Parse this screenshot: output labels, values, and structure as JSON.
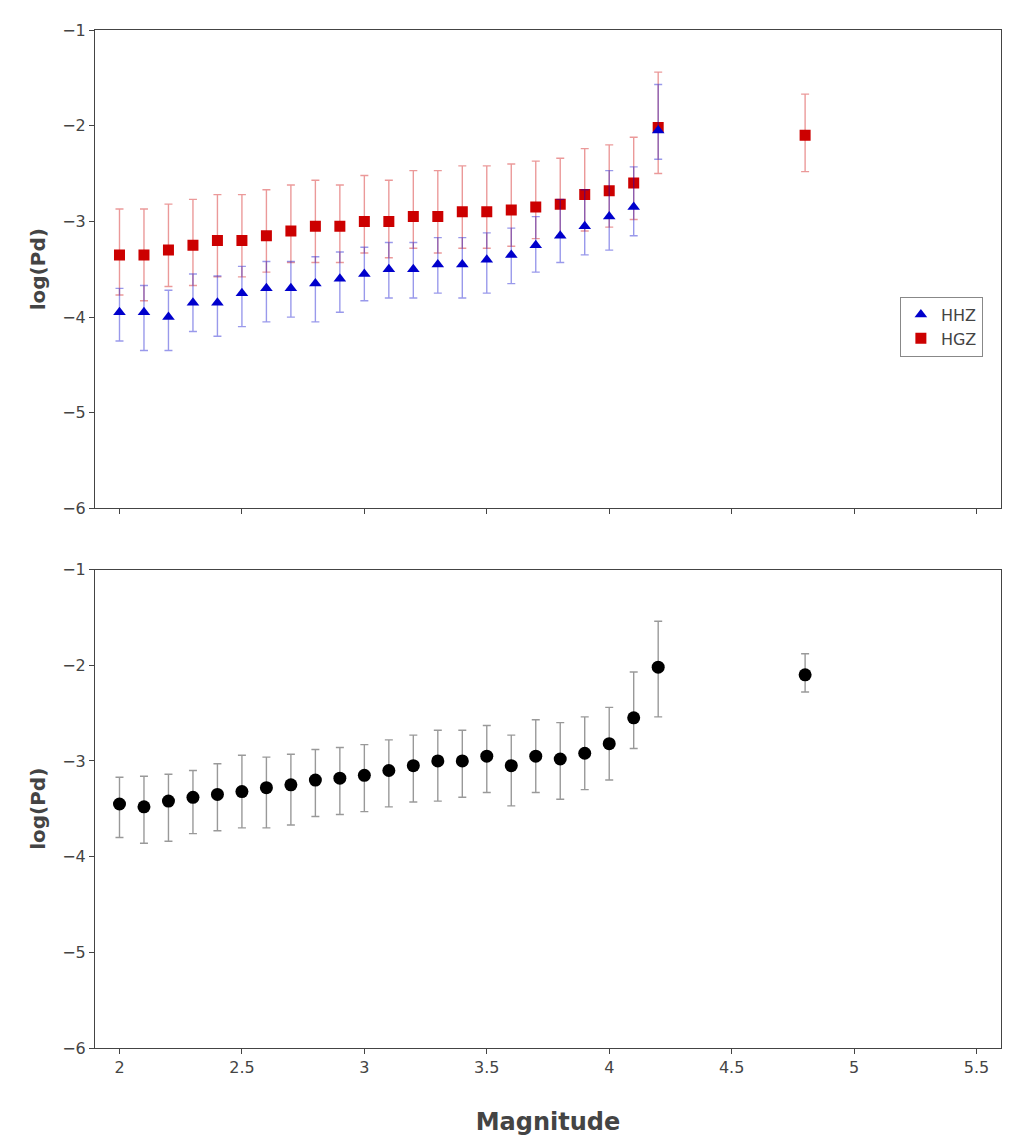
{
  "chart_data": [
    {
      "type": "scatter",
      "ylabel": "log(Pd)",
      "xlim": [
        1.9,
        5.6
      ],
      "ylim": [
        -6.0,
        -1.0
      ],
      "xticks": [
        2.0,
        2.5,
        3.0,
        3.5,
        4.0,
        4.5,
        5.0,
        5.5
      ],
      "yticks": [
        -6,
        -5,
        -4,
        -3,
        -2,
        -1
      ],
      "grid": false,
      "legend": "right",
      "tick_labels": "y",
      "series": [
        {
          "name": "HGZ",
          "color": "#CC0000",
          "marker": "square",
          "x": [
            2.0,
            2.1,
            2.2,
            2.3,
            2.4,
            2.5,
            2.6,
            2.7,
            2.8,
            2.9,
            3.0,
            3.1,
            3.2,
            3.3,
            3.4,
            3.5,
            3.6,
            3.7,
            3.8,
            3.9,
            4.0,
            4.1,
            4.2,
            4.8
          ],
          "values": [
            -3.35,
            -3.35,
            -3.3,
            -3.25,
            -3.2,
            -3.2,
            -3.15,
            -3.1,
            -3.05,
            -3.05,
            -3.0,
            -3.0,
            -2.95,
            -2.95,
            -2.9,
            -2.9,
            -2.88,
            -2.85,
            -2.82,
            -2.72,
            -2.68,
            -2.6,
            -2.02,
            -2.1
          ],
          "error_minus": [
            0.42,
            0.48,
            0.38,
            0.42,
            0.38,
            0.38,
            0.38,
            0.33,
            0.38,
            0.38,
            0.33,
            0.38,
            0.33,
            0.38,
            0.38,
            0.38,
            0.38,
            0.33,
            0.33,
            0.38,
            0.38,
            0.38,
            0.48,
            0.38
          ],
          "error_plus": [
            0.48,
            0.48,
            0.48,
            0.48,
            0.48,
            0.48,
            0.48,
            0.48,
            0.48,
            0.43,
            0.48,
            0.43,
            0.48,
            0.48,
            0.48,
            0.48,
            0.48,
            0.48,
            0.48,
            0.48,
            0.48,
            0.48,
            0.58,
            0.43
          ]
        },
        {
          "name": "HHZ",
          "color": "#0000CC",
          "marker": "triangle-up",
          "x": [
            2.0,
            2.1,
            2.2,
            2.3,
            2.4,
            2.5,
            2.6,
            2.7,
            2.8,
            2.9,
            3.0,
            3.1,
            3.2,
            3.3,
            3.4,
            3.5,
            3.6,
            3.7,
            3.8,
            3.9,
            4.0,
            4.1,
            4.2
          ],
          "values": [
            -3.95,
            -3.95,
            -4.0,
            -3.85,
            -3.85,
            -3.75,
            -3.7,
            -3.7,
            -3.65,
            -3.6,
            -3.55,
            -3.5,
            -3.5,
            -3.45,
            -3.45,
            -3.4,
            -3.35,
            -3.25,
            -3.15,
            -3.05,
            -2.95,
            -2.85,
            -2.05
          ],
          "error_minus": [
            0.3,
            0.4,
            0.35,
            0.3,
            0.35,
            0.35,
            0.35,
            0.3,
            0.4,
            0.35,
            0.28,
            0.3,
            0.3,
            0.3,
            0.35,
            0.35,
            0.3,
            0.28,
            0.28,
            0.3,
            0.35,
            0.3,
            0.3
          ],
          "error_plus": [
            0.25,
            0.28,
            0.28,
            0.3,
            0.28,
            0.28,
            0.28,
            0.28,
            0.28,
            0.28,
            0.28,
            0.28,
            0.28,
            0.28,
            0.28,
            0.28,
            0.28,
            0.3,
            0.38,
            0.38,
            0.48,
            0.42,
            0.48
          ]
        }
      ]
    },
    {
      "type": "scatter",
      "xlabel": "Magnitude",
      "ylabel": "log(Pd)",
      "xlim": [
        1.9,
        5.6
      ],
      "ylim": [
        -6.0,
        -1.0
      ],
      "xticks": [
        2.0,
        2.5,
        3.0,
        3.5,
        4.0,
        4.5,
        5.0,
        5.5
      ],
      "yticks": [
        -6,
        -5,
        -4,
        -3,
        -2,
        -1
      ],
      "grid": false,
      "series": [
        {
          "color": "#000000",
          "marker": "circle",
          "x": [
            2.0,
            2.1,
            2.2,
            2.3,
            2.4,
            2.5,
            2.6,
            2.7,
            2.8,
            2.9,
            3.0,
            3.1,
            3.2,
            3.3,
            3.4,
            3.5,
            3.6,
            3.7,
            3.8,
            3.9,
            4.0,
            4.1,
            4.2,
            4.8
          ],
          "values": [
            -3.45,
            -3.48,
            -3.42,
            -3.38,
            -3.35,
            -3.32,
            -3.28,
            -3.25,
            -3.2,
            -3.18,
            -3.15,
            -3.1,
            -3.05,
            -3.0,
            -3.0,
            -2.95,
            -3.05,
            -2.95,
            -2.98,
            -2.92,
            -2.82,
            -2.55,
            -2.02,
            -2.1
          ],
          "error_minus": [
            0.35,
            0.38,
            0.42,
            0.38,
            0.38,
            0.38,
            0.42,
            0.42,
            0.38,
            0.38,
            0.38,
            0.38,
            0.38,
            0.42,
            0.38,
            0.38,
            0.42,
            0.38,
            0.42,
            0.38,
            0.38,
            0.32,
            0.52,
            0.18
          ],
          "error_plus": [
            0.28,
            0.32,
            0.28,
            0.28,
            0.32,
            0.38,
            0.32,
            0.32,
            0.32,
            0.32,
            0.32,
            0.32,
            0.32,
            0.32,
            0.32,
            0.32,
            0.32,
            0.38,
            0.38,
            0.38,
            0.38,
            0.48,
            0.48,
            0.22
          ]
        }
      ]
    }
  ]
}
